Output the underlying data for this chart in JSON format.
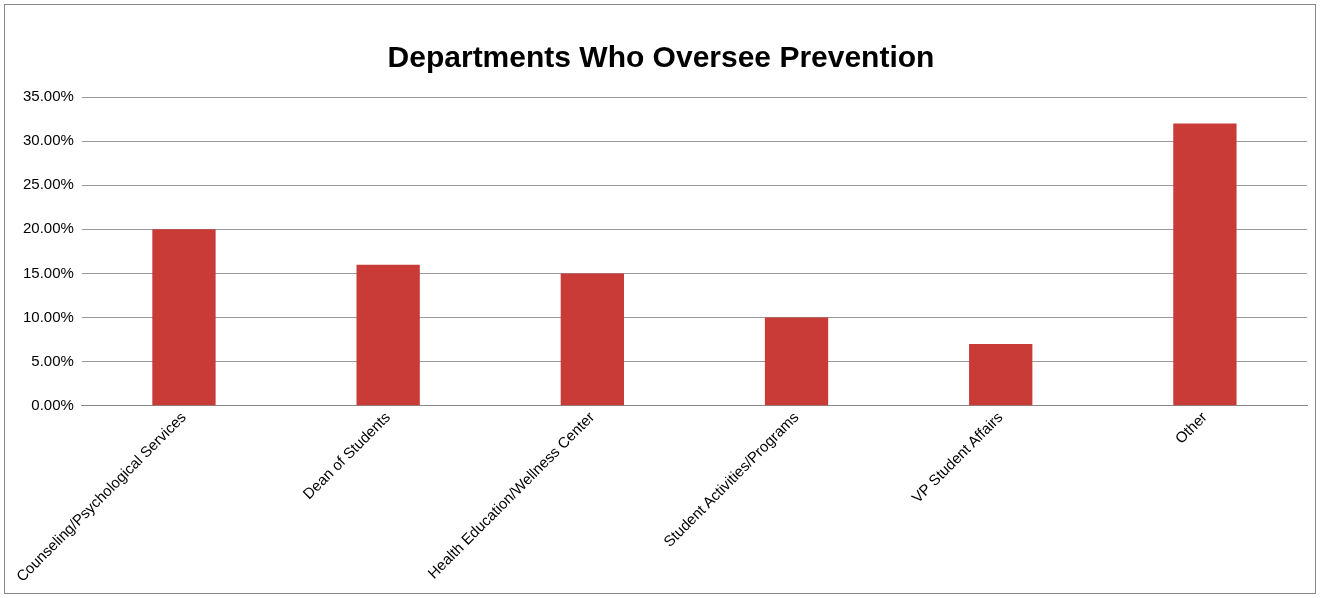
{
  "chart_data": {
    "type": "bar",
    "title": "Departments Who Oversee Prevention",
    "categories": [
      "Counseling/Psychological Services",
      "Dean of Students",
      "Health Education/Wellness Center",
      "Student Activities/Programs",
      "VP Student Affairs",
      "Other"
    ],
    "values": [
      20,
      16,
      15,
      10,
      7,
      32
    ],
    "color": "#c83b37",
    "ylim": [
      0,
      35
    ],
    "yticks": [
      {
        "value": 0,
        "label": "0.00%"
      },
      {
        "value": 5,
        "label": "5.00%"
      },
      {
        "value": 10,
        "label": "10.00%"
      },
      {
        "value": 15,
        "label": "15.00%"
      },
      {
        "value": 20,
        "label": "20.00%"
      },
      {
        "value": 25,
        "label": "25.00%"
      },
      {
        "value": 30,
        "label": "30.00%"
      },
      {
        "value": 35,
        "label": "35.00%"
      }
    ],
    "grid": "y"
  }
}
